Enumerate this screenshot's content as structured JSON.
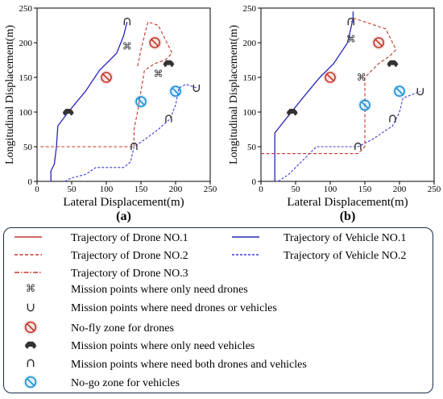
{
  "chart_data": [
    {
      "type": "line",
      "panel_label": "(a)",
      "xlabel": "Lateral Displacement(m)",
      "ylabel": "Longitudinal Displacement(m)",
      "xlim": [
        0,
        250
      ],
      "ylim": [
        0,
        250
      ],
      "xticks": [
        "0",
        "50",
        "100",
        "150",
        "200",
        "250"
      ],
      "yticks": [
        "0",
        "50",
        "100",
        "150",
        "200",
        "250"
      ],
      "grid": false,
      "series": [
        {
          "key": "vehicle1",
          "values": [
            [
              20,
              0
            ],
            [
              20,
              15
            ],
            [
              25,
              25
            ],
            [
              28,
              50
            ],
            [
              30,
              80
            ],
            [
              45,
              100
            ],
            [
              70,
              130
            ],
            [
              90,
              160
            ],
            [
              115,
              185
            ],
            [
              125,
              210
            ],
            [
              130,
              230
            ]
          ]
        },
        {
          "key": "vehicle2",
          "values": [
            [
              40,
              0
            ],
            [
              50,
              5
            ],
            [
              70,
              10
            ],
            [
              85,
              20
            ],
            [
              125,
              20
            ],
            [
              135,
              28
            ],
            [
              140,
              50
            ],
            [
              155,
              60
            ],
            [
              175,
              75
            ],
            [
              192,
              90
            ],
            [
              200,
              110
            ],
            [
              205,
              135
            ],
            [
              215,
              140
            ],
            [
              230,
              135
            ]
          ]
        },
        {
          "key": "drone1",
          "values": []
        },
        {
          "key": "drone2",
          "values": [
            [
              5,
              50
            ],
            [
              140,
              50
            ],
            [
              140,
              75
            ],
            [
              145,
              100
            ],
            [
              155,
              160
            ],
            [
              170,
              170
            ],
            [
              185,
              175
            ],
            [
              195,
              185
            ],
            [
              175,
              225
            ],
            [
              160,
              230
            ],
            [
              155,
              210
            ],
            [
              150,
              190
            ],
            [
              145,
              165
            ]
          ]
        },
        {
          "key": "drone3",
          "values": []
        }
      ],
      "markers": [
        {
          "kind": "drone_only_point",
          "x": 130,
          "y": 195
        },
        {
          "kind": "drone_only_point",
          "x": 175,
          "y": 155
        },
        {
          "kind": "drone_or_vehicle_point",
          "x": 230,
          "y": 135
        },
        {
          "kind": "vehicle_only_point",
          "x": 45,
          "y": 100
        },
        {
          "kind": "vehicle_only_point",
          "x": 190,
          "y": 170
        },
        {
          "kind": "both_point",
          "x": 130,
          "y": 230
        },
        {
          "kind": "both_point",
          "x": 190,
          "y": 90
        },
        {
          "kind": "both_point",
          "x": 140,
          "y": 50
        },
        {
          "kind": "no_fly_zone",
          "x": 170,
          "y": 200
        },
        {
          "kind": "no_fly_zone",
          "x": 100,
          "y": 150
        },
        {
          "kind": "no_go_zone",
          "x": 150,
          "y": 115
        },
        {
          "kind": "no_go_zone",
          "x": 200,
          "y": 130
        }
      ]
    },
    {
      "type": "line",
      "panel_label": "(b)",
      "xlabel": "Lateral Displacement(m)",
      "ylabel": "Longitudinal Displacement(m)",
      "xlim": [
        0,
        250
      ],
      "ylim": [
        0,
        250
      ],
      "xticks": [
        "0",
        "50",
        "100",
        "150",
        "200",
        "250"
      ],
      "yticks": [
        "0",
        "50",
        "100",
        "150",
        "200",
        "250"
      ],
      "grid": false,
      "series": [
        {
          "key": "vehicle1",
          "values": [
            [
              20,
              0
            ],
            [
              20,
              70
            ],
            [
              40,
              95
            ],
            [
              60,
              120
            ],
            [
              85,
              150
            ],
            [
              105,
              170
            ],
            [
              125,
              200
            ],
            [
              133,
              235
            ],
            [
              133,
              245
            ]
          ]
        },
        {
          "key": "vehicle2",
          "values": [
            [
              25,
              0
            ],
            [
              40,
              10
            ],
            [
              60,
              30
            ],
            [
              80,
              50
            ],
            [
              140,
              50
            ],
            [
              160,
              60
            ],
            [
              175,
              70
            ],
            [
              190,
              80
            ],
            [
              200,
              100
            ],
            [
              205,
              120
            ],
            [
              230,
              130
            ]
          ]
        },
        {
          "key": "drone1",
          "values": []
        },
        {
          "key": "drone2",
          "values": [
            [
              0,
              40
            ],
            [
              140,
              40
            ],
            [
              150,
              50
            ],
            [
              150,
              150
            ],
            [
              170,
              170
            ],
            [
              185,
              180
            ],
            [
              195,
              190
            ],
            [
              180,
              220
            ],
            [
              150,
              230
            ],
            [
              135,
              235
            ],
            [
              130,
              230
            ]
          ]
        },
        {
          "key": "drone3",
          "values": []
        }
      ],
      "markers": [
        {
          "kind": "drone_only_point",
          "x": 130,
          "y": 205
        },
        {
          "kind": "drone_only_point",
          "x": 145,
          "y": 150
        },
        {
          "kind": "drone_or_vehicle_point",
          "x": 230,
          "y": 130
        },
        {
          "kind": "vehicle_only_point",
          "x": 45,
          "y": 100
        },
        {
          "kind": "vehicle_only_point",
          "x": 190,
          "y": 170
        },
        {
          "kind": "both_point",
          "x": 130,
          "y": 230
        },
        {
          "kind": "both_point",
          "x": 190,
          "y": 90
        },
        {
          "kind": "both_point",
          "x": 140,
          "y": 50
        },
        {
          "kind": "no_fly_zone",
          "x": 170,
          "y": 200
        },
        {
          "kind": "no_fly_zone",
          "x": 100,
          "y": 150
        },
        {
          "kind": "no_go_zone",
          "x": 150,
          "y": 110
        },
        {
          "kind": "no_go_zone",
          "x": 200,
          "y": 130
        }
      ]
    }
  ],
  "legend": {
    "drone1": "Trajectory of Drone NO.1",
    "drone2": "Trajectory of Drone NO.2",
    "drone3": "Trajectory of Drone NO.3",
    "vehicle1": "Trajectory of Vehicle NO.1",
    "vehicle2": "Trajectory of Vehicle NO.2",
    "drone_only_point": "Mission points where only need drones",
    "drone_or_vehicle_point": "Mission points where need drones or vehicles",
    "no_fly_zone": "No-fly zone for drones",
    "vehicle_only_point": "Mission points where only need vehicles",
    "both_point": "Mission points where need both drones and vehicles",
    "no_go_zone": "No-go zone for vehicles"
  },
  "colors": {
    "drone": "#c0392b",
    "vehicle_solid": "#2626b8",
    "vehicle_dashed": "#3b3bd6",
    "no_fly": "#c0392b",
    "no_go": "#1e90d6",
    "marker": "#333333",
    "axis": "#000000",
    "legend_border": "#1b2a4a"
  }
}
